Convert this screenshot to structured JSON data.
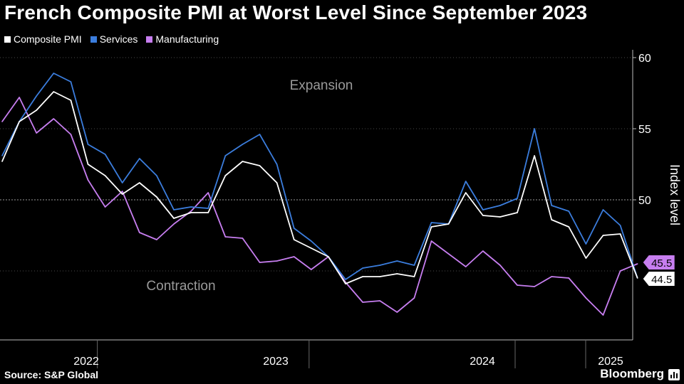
{
  "title": "French Composite PMI at Worst Level Since September 2023",
  "source": "Source: S&P Global",
  "brand": "Bloomberg",
  "chart_data": {
    "type": "line",
    "title": "French Composite PMI at Worst Level Since September 2023",
    "ylabel": "Index level",
    "xlabel": "",
    "ylim": [
      40,
      60.5
    ],
    "yticks": [
      50,
      55,
      60
    ],
    "grid": "dashed horizontal",
    "legend_position": "top-left",
    "annotations": [
      "Expansion",
      "Contraction"
    ],
    "x_tick_labels": [
      "2022",
      "2023",
      "2024",
      "2025"
    ],
    "x": [
      "2022-01",
      "2022-02",
      "2022-03",
      "2022-04",
      "2022-05",
      "2022-06",
      "2022-07",
      "2022-08",
      "2022-09",
      "2022-10",
      "2022-11",
      "2022-12",
      "2023-01",
      "2023-02",
      "2023-03",
      "2023-04",
      "2023-05",
      "2023-06",
      "2023-07",
      "2023-08",
      "2023-09",
      "2023-10",
      "2023-11",
      "2023-12",
      "2024-01",
      "2024-02",
      "2024-03",
      "2024-04",
      "2024-05",
      "2024-06",
      "2024-07",
      "2024-08",
      "2024-09",
      "2024-10",
      "2024-11",
      "2024-12",
      "2025-01",
      "2025-02"
    ],
    "series": [
      {
        "name": "Composite PMI",
        "color": "#ffffff",
        "values": [
          52.7,
          55.5,
          56.3,
          57.6,
          57.0,
          52.5,
          51.7,
          50.4,
          51.2,
          50.2,
          48.7,
          49.1,
          49.1,
          51.7,
          52.7,
          52.4,
          51.2,
          47.2,
          46.6,
          46.0,
          44.1,
          44.6,
          44.6,
          44.8,
          44.6,
          48.1,
          48.3,
          50.5,
          48.9,
          48.8,
          49.1,
          53.1,
          48.6,
          48.1,
          45.9,
          47.5,
          47.6,
          44.5
        ]
      },
      {
        "name": "Services",
        "color": "#3b7ddd",
        "values": [
          53.1,
          55.5,
          57.3,
          58.9,
          58.3,
          53.9,
          53.2,
          51.2,
          52.9,
          51.7,
          49.3,
          49.5,
          49.4,
          53.1,
          53.9,
          54.6,
          52.5,
          48.0,
          47.1,
          46.0,
          44.4,
          45.2,
          45.4,
          45.7,
          45.4,
          48.4,
          48.3,
          51.3,
          49.3,
          49.6,
          50.1,
          55.0,
          49.6,
          49.2,
          46.9,
          49.3,
          48.2,
          44.5
        ]
      },
      {
        "name": "Manufacturing",
        "color": "#c77ef0",
        "values": [
          55.5,
          57.2,
          54.7,
          55.7,
          54.6,
          51.4,
          49.5,
          50.6,
          47.7,
          47.2,
          48.3,
          49.2,
          50.5,
          47.4,
          47.3,
          45.6,
          45.7,
          46.0,
          45.1,
          46.0,
          44.2,
          42.8,
          42.9,
          42.1,
          43.1,
          47.1,
          46.2,
          45.3,
          46.4,
          45.4,
          44.0,
          43.9,
          44.6,
          44.5,
          43.1,
          41.9,
          45.0,
          45.5
        ]
      }
    ],
    "end_labels": [
      "45.5",
      "44.5"
    ]
  }
}
